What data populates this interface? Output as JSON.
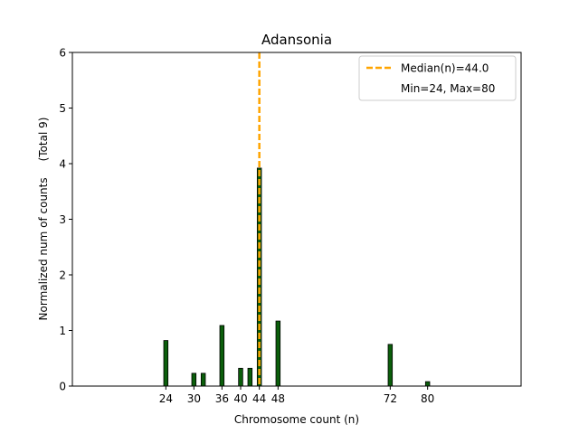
{
  "chart_data": {
    "type": "bar",
    "title": "Adansonia",
    "xlabel": "Chromosome count (n)",
    "ylabel": "Normalized num of counts",
    "ylabel_extra": "(Total 9)",
    "xlim": [
      4,
      100
    ],
    "ylim": [
      0,
      6
    ],
    "xticks": [
      24,
      30,
      36,
      40,
      44,
      48,
      72,
      80
    ],
    "yticks": [
      0,
      1,
      2,
      3,
      4,
      5,
      6
    ],
    "bar_width": 0.9,
    "bar_color": "#0b5e0b",
    "bar_edge_color": "#000000",
    "bars": [
      {
        "x": 24,
        "value": 0.82
      },
      {
        "x": 30,
        "value": 0.23
      },
      {
        "x": 32,
        "value": 0.23
      },
      {
        "x": 36,
        "value": 1.09
      },
      {
        "x": 40,
        "value": 0.32
      },
      {
        "x": 42,
        "value": 0.32
      },
      {
        "x": 44,
        "value": 3.92
      },
      {
        "x": 48,
        "value": 1.17
      },
      {
        "x": 72,
        "value": 0.75
      },
      {
        "x": 80,
        "value": 0.08
      }
    ],
    "median": {
      "x": 44,
      "color": "#ffa500"
    },
    "legend": {
      "position": "top-right",
      "entries": [
        "Median(n)=44.0",
        "Min=24, Max=80"
      ]
    }
  }
}
